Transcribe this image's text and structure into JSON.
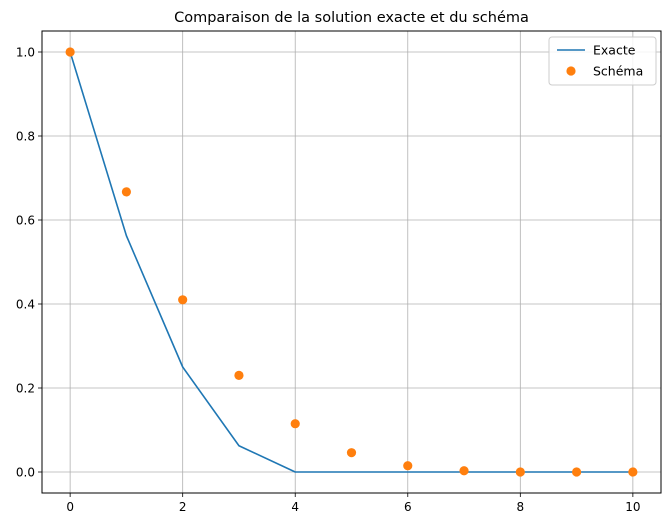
{
  "chart_data": {
    "type": "line",
    "title": "Comparaison de la solution exacte et du schéma",
    "xlabel": "",
    "ylabel": "",
    "xlim": [
      -0.5,
      10.5
    ],
    "ylim": [
      -0.05,
      1.05
    ],
    "grid": true,
    "legend_position": "top-right",
    "x_ticks": [
      "0",
      "2",
      "4",
      "6",
      "8",
      "10"
    ],
    "y_ticks": [
      "0.0",
      "0.2",
      "0.4",
      "0.6",
      "0.8",
      "1.0"
    ],
    "series": [
      {
        "name": "Exacte",
        "type": "line",
        "color": "#1f77b4",
        "x": [
          0,
          1,
          2,
          3,
          4,
          5,
          6,
          7,
          8,
          9,
          10
        ],
        "y": [
          1.0,
          0.5625,
          0.25,
          0.0625,
          0.0,
          0.0,
          0.0,
          0.0,
          0.0,
          0.0,
          0.0
        ]
      },
      {
        "name": "Schéma",
        "type": "scatter",
        "color": "#ff7f0e",
        "x": [
          0,
          1,
          2,
          3,
          4,
          5,
          6,
          7,
          8,
          9,
          10
        ],
        "y": [
          1.0,
          0.667,
          0.41,
          0.23,
          0.115,
          0.046,
          0.015,
          0.003,
          0.0,
          0.0,
          0.0
        ]
      }
    ]
  }
}
